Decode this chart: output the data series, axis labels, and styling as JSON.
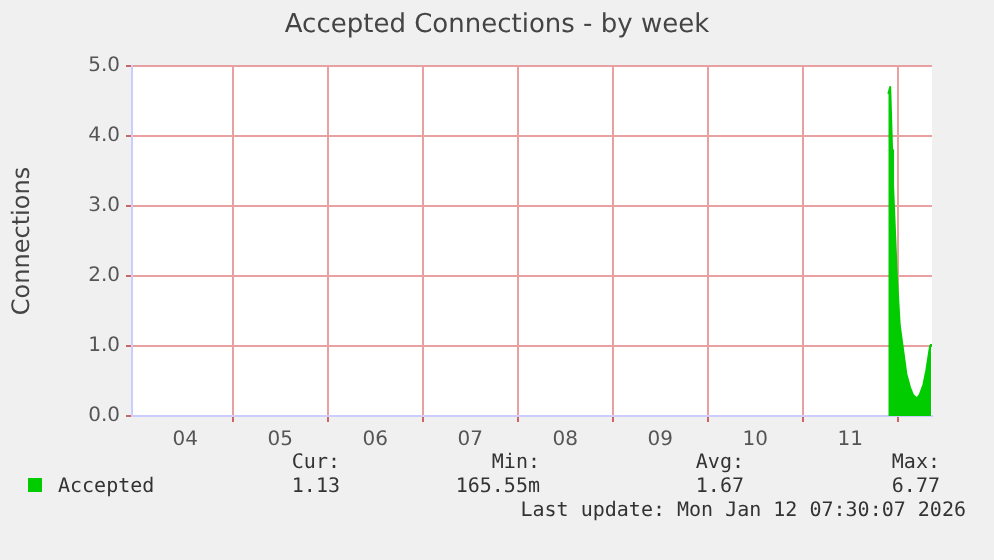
{
  "chart_data": {
    "type": "area",
    "title": "Accepted Connections - by week",
    "ylabel": "Connections",
    "x": [
      11.9,
      11.92,
      11.94,
      11.95,
      11.99,
      12.02,
      12.06,
      12.09,
      12.13,
      12.16,
      12.2,
      12.23,
      12.27,
      12.3,
      12.34,
      12.35
    ],
    "series": [
      {
        "name": "Accepted",
        "color": "#00cc00",
        "values": [
          4.6,
          4.7,
          3.8,
          3.3,
          2.0,
          1.3,
          0.9,
          0.6,
          0.4,
          0.3,
          0.25,
          0.3,
          0.45,
          0.65,
          1.0,
          1.03
        ]
      }
    ],
    "xlim": [
      3.94,
      12.36
    ],
    "xticks": [
      {
        "value": 4.5,
        "label": "04"
      },
      {
        "value": 5.5,
        "label": "05"
      },
      {
        "value": 6.5,
        "label": "06"
      },
      {
        "value": 7.5,
        "label": "07"
      },
      {
        "value": 8.5,
        "label": "08"
      },
      {
        "value": 9.5,
        "label": "09"
      },
      {
        "value": 10.5,
        "label": "10"
      },
      {
        "value": 11.5,
        "label": "11"
      },
      {
        "value": 5,
        "label": null
      },
      {
        "value": 6,
        "label": null
      },
      {
        "value": 7,
        "label": null
      },
      {
        "value": 8,
        "label": null
      },
      {
        "value": 9,
        "label": null
      },
      {
        "value": 10,
        "label": null
      },
      {
        "value": 11,
        "label": null
      },
      {
        "value": 12,
        "label": null
      }
    ],
    "ylim": [
      0,
      5
    ],
    "yticks": [
      {
        "value": 0,
        "label": "0.0"
      },
      {
        "value": 1,
        "label": "1.0"
      },
      {
        "value": 2,
        "label": "2.0"
      },
      {
        "value": 3,
        "label": "3.0"
      },
      {
        "value": 4,
        "label": "4.0"
      },
      {
        "value": 5,
        "label": "5.0"
      }
    ],
    "grid": true,
    "legend": "bottom left",
    "annotations": [
      "Cur:",
      "Min:",
      "Avg:",
      "Max:",
      "1.13",
      "165.55m",
      "1.67",
      "6.77",
      "Last update: Mon Jan 12 07:30:07 2026"
    ]
  }
}
